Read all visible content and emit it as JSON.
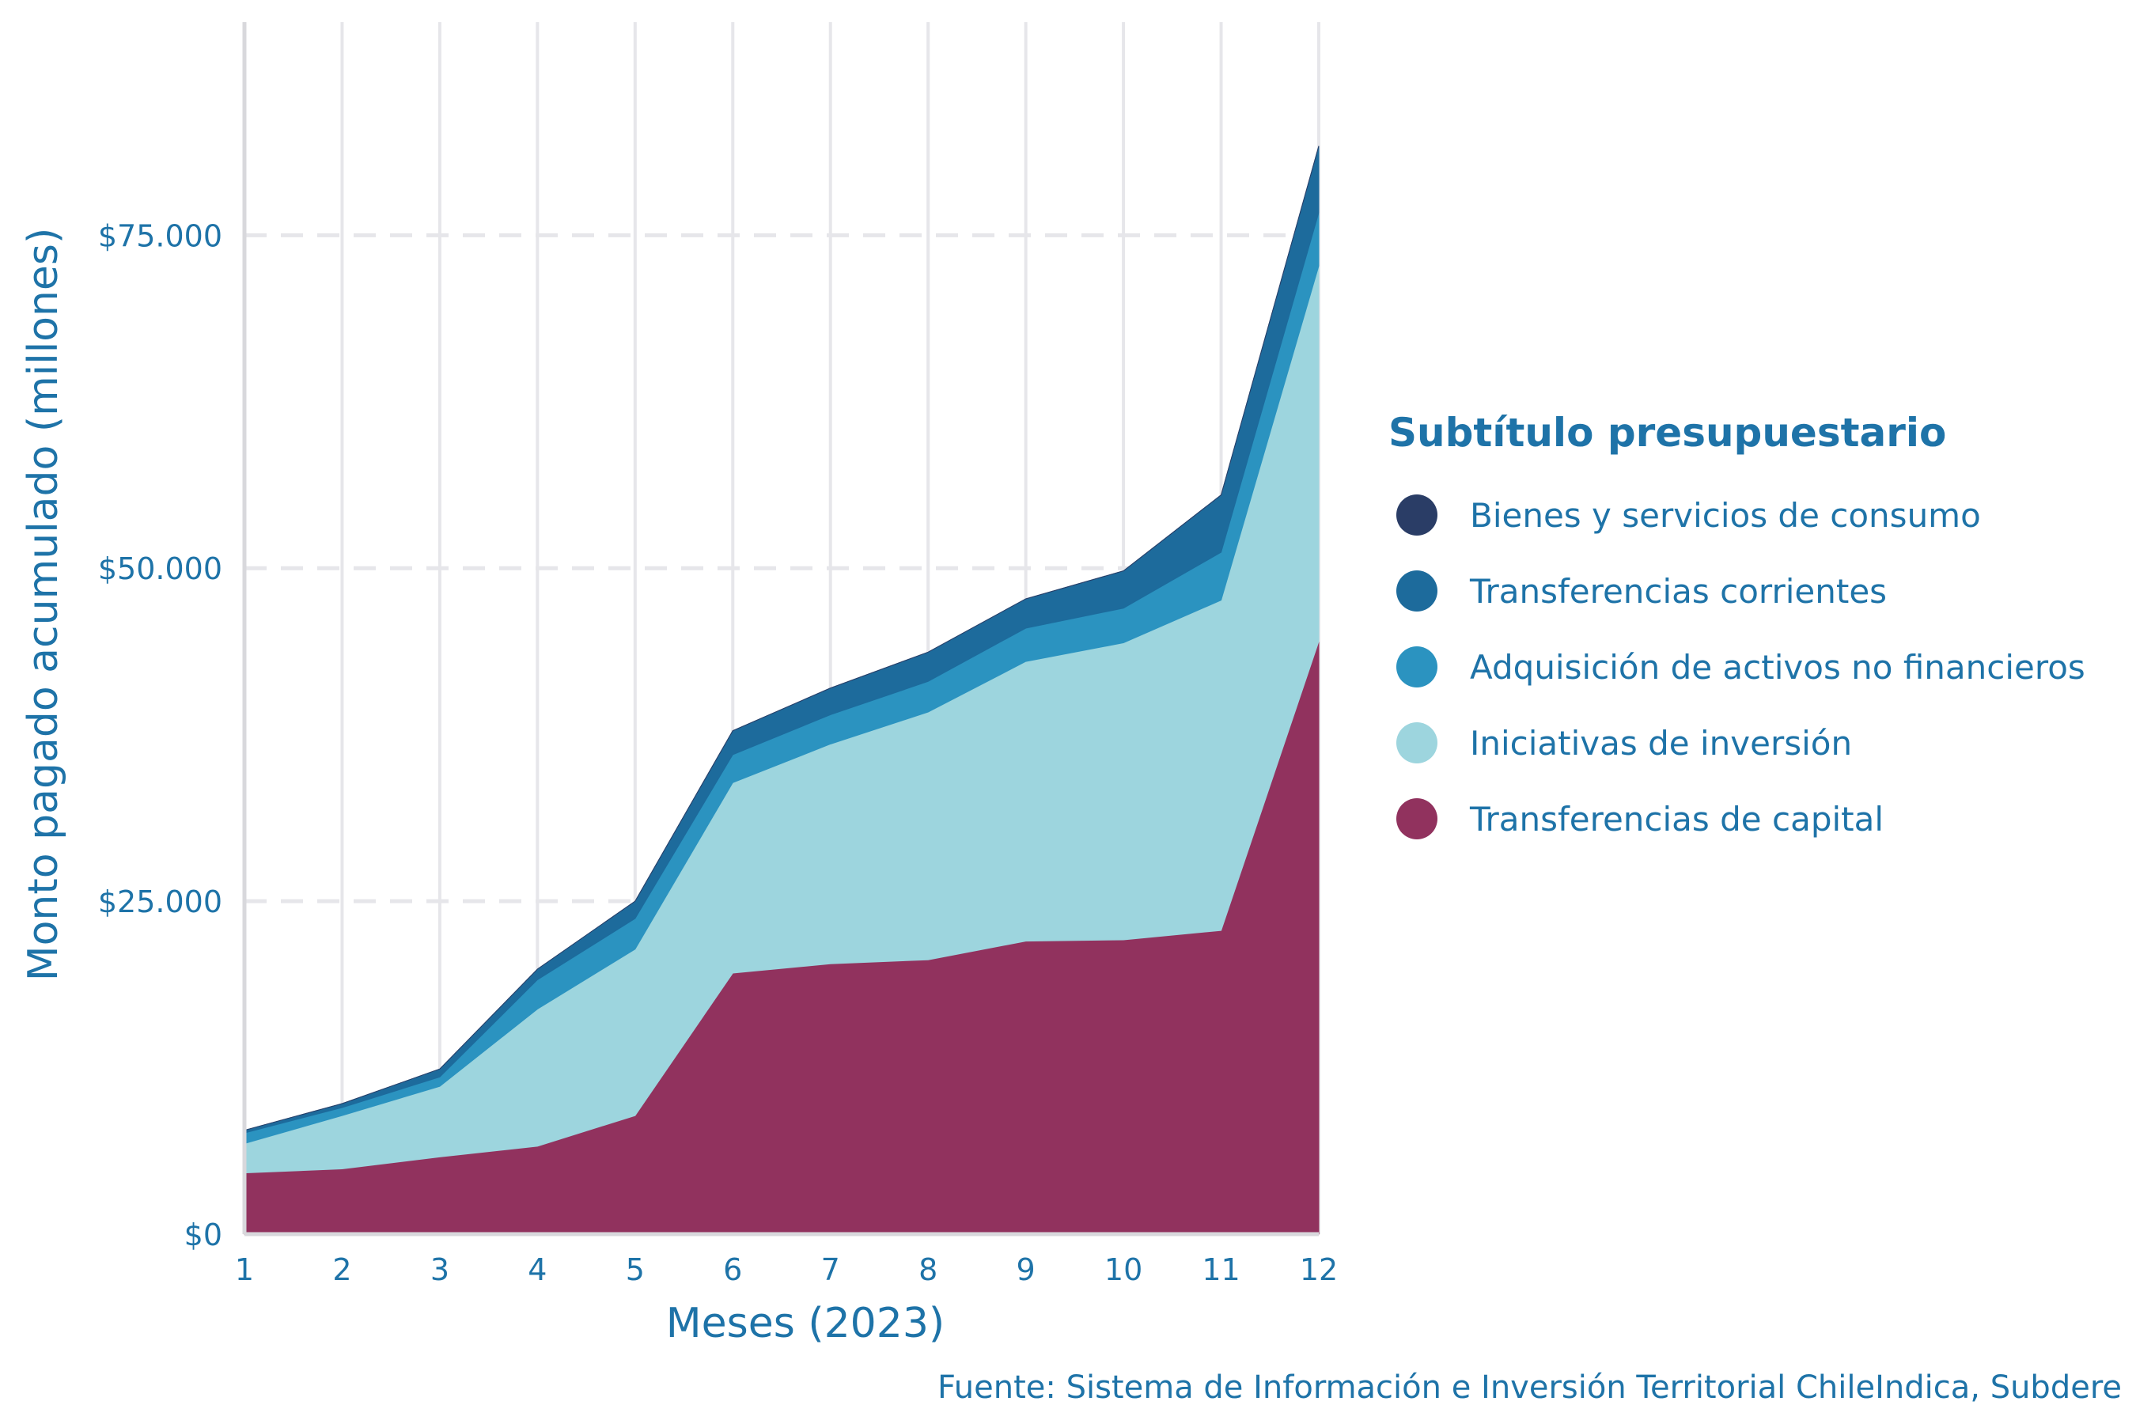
{
  "chart_data": {
    "type": "area",
    "stacked": true,
    "x": [
      1,
      2,
      3,
      4,
      5,
      6,
      7,
      8,
      9,
      10,
      11,
      12
    ],
    "x_tick_labels": [
      "1",
      "2",
      "3",
      "4",
      "5",
      "6",
      "7",
      "8",
      "9",
      "10",
      "11",
      "12"
    ],
    "xlabel": "Meses (2023)",
    "ylabel": "Monto pagado acumulado (millones)",
    "ylim": [
      0,
      91000
    ],
    "xlim": [
      1,
      12
    ],
    "y_ticks": [
      0,
      25000,
      50000,
      75000
    ],
    "y_tick_labels": [
      "$0",
      "$25.000",
      "$50.000",
      "$75.000"
    ],
    "grid": true,
    "legend_position": "right",
    "legend_title": "Subtítulo presupuestario",
    "series": [
      {
        "name": "Bienes y servicios de consumo",
        "color": "#2a3d66",
        "values": [
          0,
          0,
          0,
          0,
          0,
          0,
          0,
          0,
          0,
          0,
          0,
          0
        ]
      },
      {
        "name": "Transferencias corrientes",
        "color": "#1d6b9c",
        "values": [
          200,
          300,
          600,
          800,
          1300,
          1800,
          2000,
          2200,
          2200,
          2800,
          4300,
          5000
        ]
      },
      {
        "name": "Adquisición de activos no financieros",
        "color": "#2b93c0",
        "values": [
          800,
          600,
          700,
          2200,
          2300,
          2100,
          2200,
          2300,
          2500,
          2600,
          3600,
          4000
        ]
      },
      {
        "name": "Iniciativas de inversión",
        "color": "#9dd5de",
        "values": [
          2200,
          4000,
          5300,
          10300,
          12500,
          14300,
          16500,
          18600,
          21000,
          22300,
          24800,
          28200
        ]
      },
      {
        "name": "Transferencias de capital",
        "color": "#91325e",
        "values": [
          4600,
          4900,
          5800,
          6600,
          8900,
          19600,
          20300,
          20600,
          22000,
          22100,
          22800,
          44500
        ]
      }
    ],
    "caption": "Fuente: Sistema de Información e Inversión Territorial ChileIndica, Subdere"
  },
  "colors": {
    "text": "#1e73a8",
    "grid_solid": "#e6e6ea",
    "grid_dashed": "#e6e6ea",
    "axis_line": "#d8d8dc"
  }
}
